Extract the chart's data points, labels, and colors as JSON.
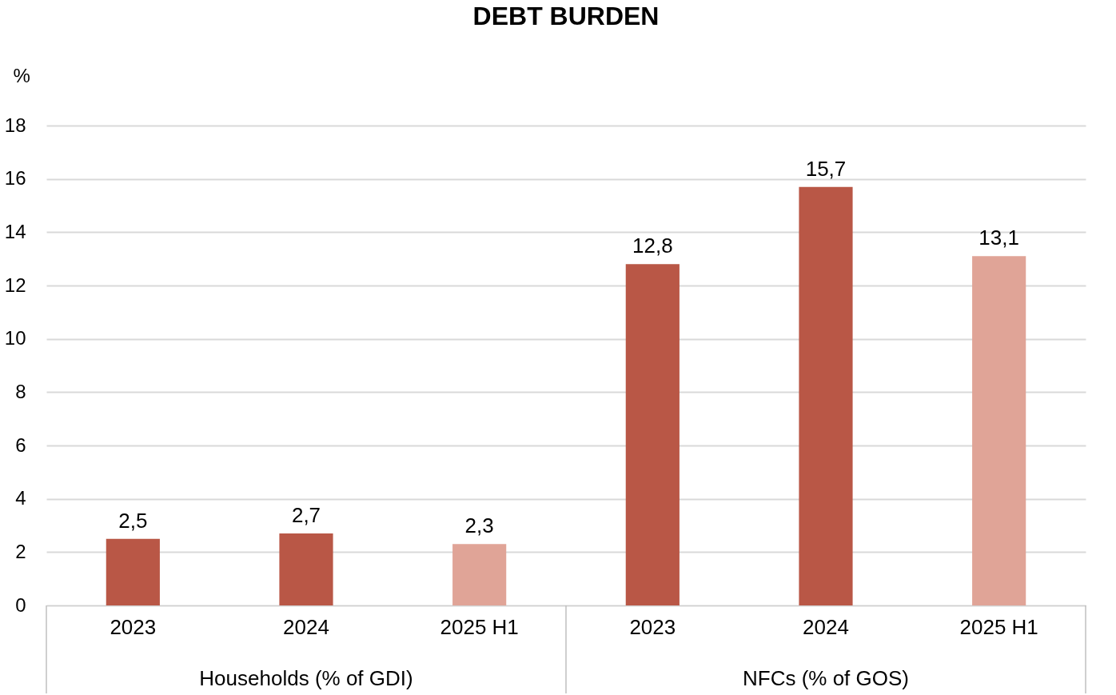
{
  "chart_data": {
    "type": "bar",
    "title": "DEBT BURDEN",
    "ylabel": "%",
    "categories": [
      "2023",
      "2024",
      "2025 H1",
      "2023",
      "2024",
      "2025 H1"
    ],
    "values": [
      2.5,
      2.7,
      2.3,
      12.8,
      15.7,
      13.1
    ],
    "value_labels": [
      "2,5",
      "2,7",
      "2,3",
      "12,8",
      "15,7",
      "13,1"
    ],
    "colors": [
      "#b95746",
      "#b95746",
      "#e0a497",
      "#b95746",
      "#b95746",
      "#e0a497"
    ],
    "ylim": [
      0,
      18
    ],
    "yticks": [
      0,
      2,
      4,
      6,
      8,
      10,
      12,
      14,
      16,
      18
    ],
    "grid": "y",
    "annotations": [
      "Households (% of GDI)",
      "NFCs (% of GOS)"
    ]
  }
}
